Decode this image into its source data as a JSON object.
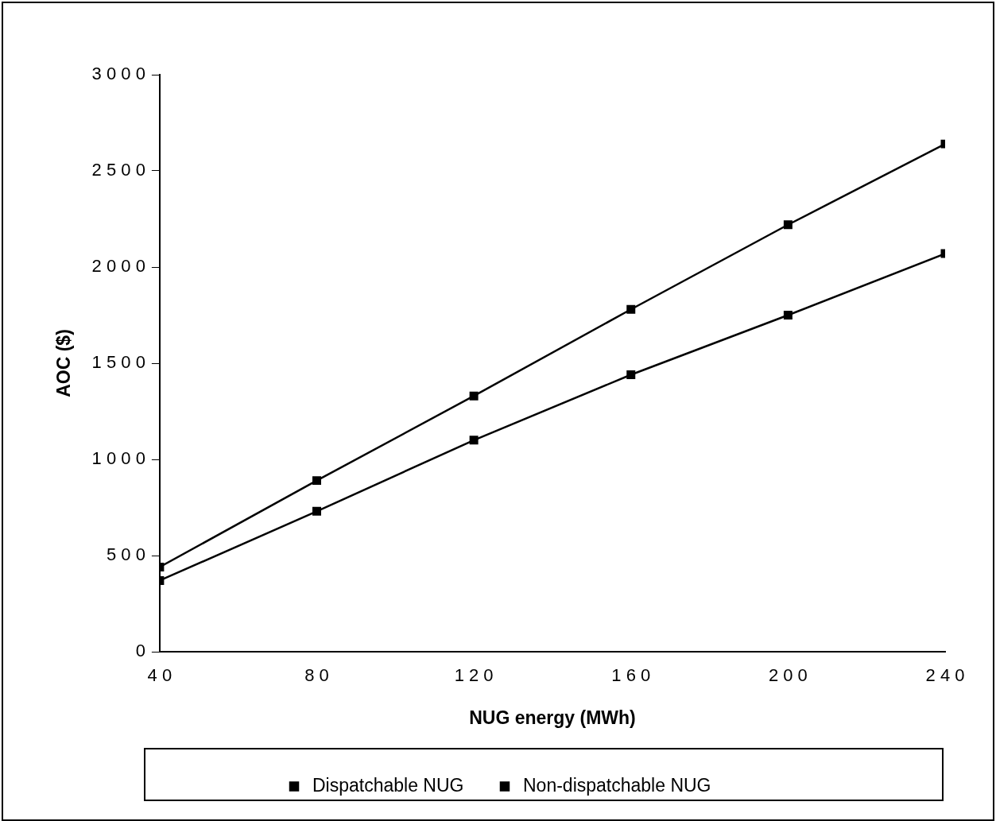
{
  "chart_data": {
    "type": "line",
    "xlabel": "NUG energy (MWh)",
    "ylabel": "AOC ($)",
    "x": [
      40,
      80,
      120,
      160,
      200,
      240
    ],
    "series": [
      {
        "name": "Dispatchable NUG",
        "color": "#000000",
        "values": [
          440,
          890,
          1330,
          1780,
          2220,
          2640
        ]
      },
      {
        "name": "Non-dispatchable NUG",
        "color": "#000000",
        "values": [
          370,
          730,
          1100,
          1440,
          1750,
          2070
        ]
      }
    ],
    "xlim": [
      40,
      240
    ],
    "xticks": [
      40,
      80,
      120,
      160,
      200,
      240
    ],
    "ylim": [
      0,
      3000
    ],
    "yticks": [
      0,
      500,
      1000,
      1500,
      2000,
      2500,
      3000
    ],
    "grid": false,
    "legend": "bottom",
    "marker": "square",
    "line_style": "solid"
  }
}
